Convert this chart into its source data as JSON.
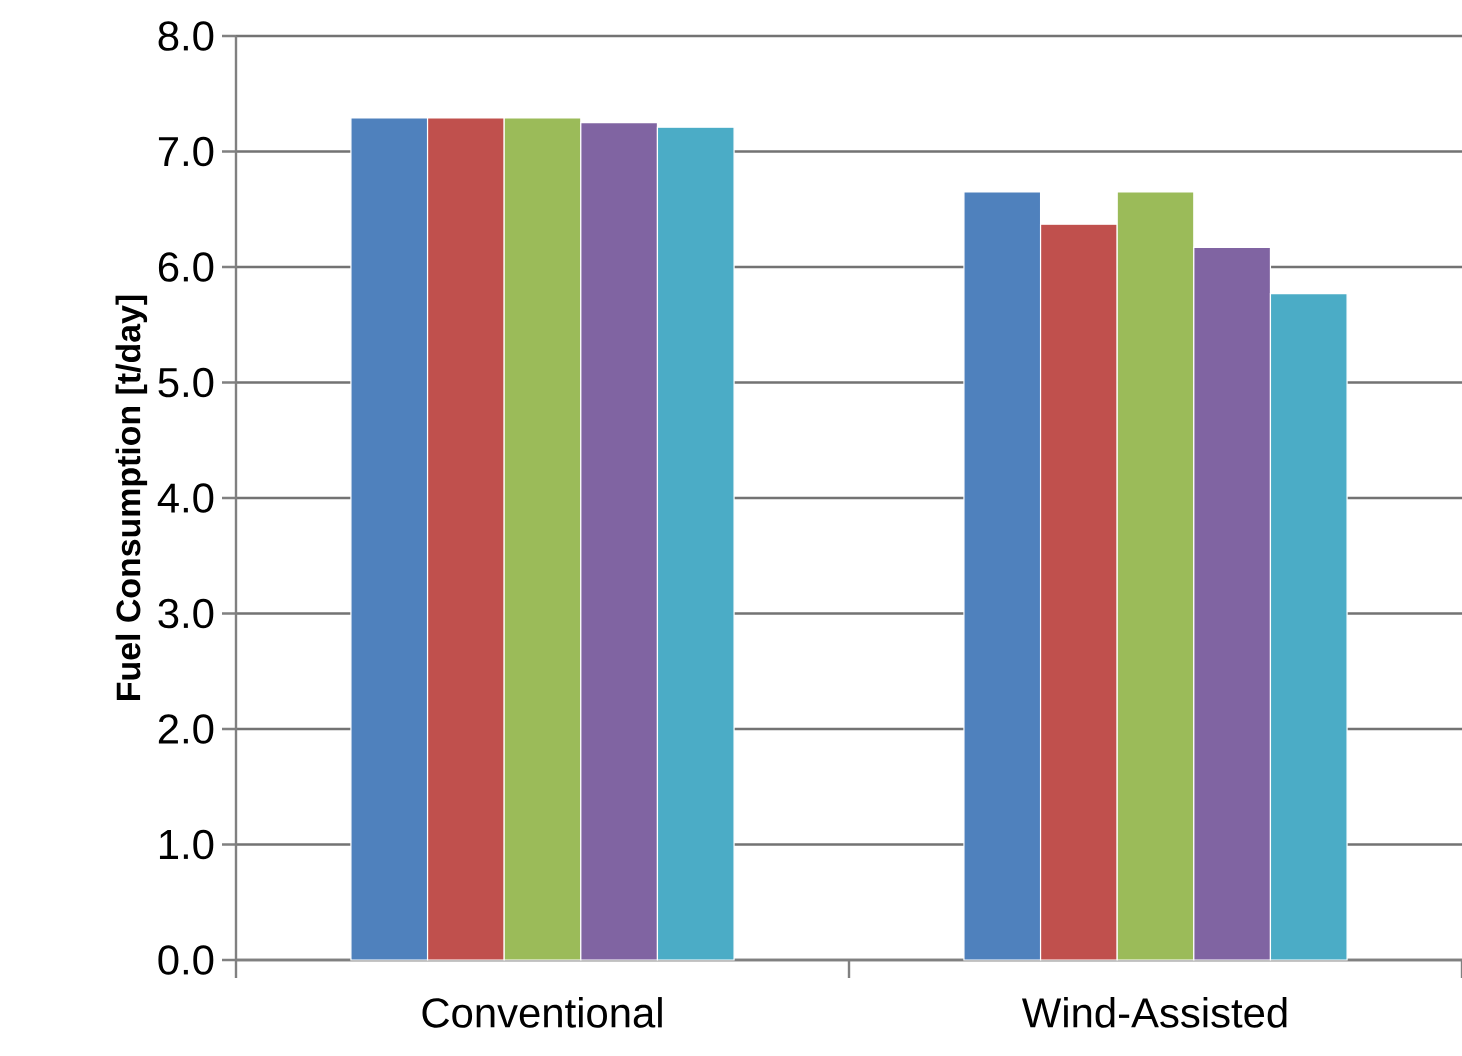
{
  "chart_data": {
    "type": "bar",
    "ylabel": "Fuel Consumption  [t/day]",
    "categories": [
      "Conventional",
      "Wind-Assisted"
    ],
    "series": [
      {
        "color": "#4f81bd",
        "values": [
          7.29,
          6.65
        ]
      },
      {
        "color": "#c0504d",
        "values": [
          7.29,
          6.37
        ]
      },
      {
        "color": "#9bbb59",
        "values": [
          7.29,
          6.65
        ]
      },
      {
        "color": "#8064a2",
        "values": [
          7.25,
          6.17
        ]
      },
      {
        "color": "#4bacc6",
        "values": [
          7.21,
          5.77
        ]
      }
    ],
    "ylim": [
      0,
      8
    ],
    "yticks": [
      {
        "value": 0,
        "label": "0.0"
      },
      {
        "value": 1,
        "label": "1.0"
      },
      {
        "value": 2,
        "label": "2.0"
      },
      {
        "value": 3,
        "label": "3.0"
      },
      {
        "value": 4,
        "label": "4.0"
      },
      {
        "value": 5,
        "label": "5.0"
      },
      {
        "value": 6,
        "label": "6.0"
      },
      {
        "value": 7,
        "label": "7.0"
      },
      {
        "value": 8,
        "label": "8.0"
      }
    ],
    "grid": "y"
  }
}
